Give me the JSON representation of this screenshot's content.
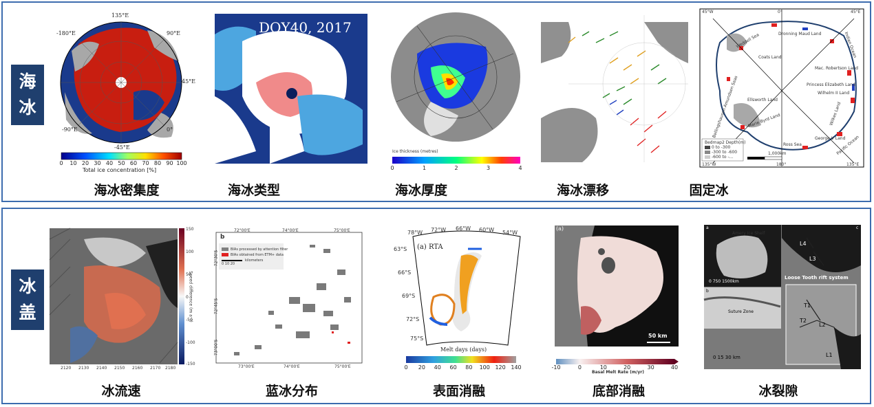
{
  "sea_ice": {
    "tag": "海冰",
    "items": [
      {
        "caption": "海冰密集度",
        "labels": {
          "top": "135°E",
          "left": "-180°E",
          "right": "90°E",
          "right2": "45°E",
          "bottom": "-45°E",
          "bl": "-90°E",
          "br": "0°"
        },
        "colorbar_ticks": [
          "0",
          "10",
          "20",
          "30",
          "40",
          "50",
          "60",
          "70",
          "80",
          "90",
          "100"
        ],
        "colorbar_label": "Total ice concentration [%]"
      },
      {
        "caption": "海冰类型",
        "overlay": "DOY40, 2017"
      },
      {
        "caption": "海冰厚度",
        "colorbar_label": "Ice thickness (metres)",
        "colorbar_ticks": [
          "0",
          "1",
          "2",
          "3",
          "4"
        ]
      },
      {
        "caption": "海冰漂移"
      },
      {
        "caption": "固定冰",
        "labels": {
          "tl": "45°W",
          "tc": "0°",
          "tr": "45°E",
          "bl": "135°W",
          "bc": "180°",
          "br": "135°E",
          "weddell": "Weddell Sea",
          "dronning": "Dronning Maud Land",
          "indian": "Indian Ocean",
          "coats": "Coats Land",
          "mac": "Mac. Robertson Land",
          "princess": "Princess Elizabeth Land",
          "wilhelm": "Wilhelm II Land",
          "amundsen": "Bellingshausen Amundsen Seas",
          "ellsworth": "Ellsworth Land",
          "marie": "Marie Byrd Land",
          "wilkes": "Wilkes Land",
          "ross": "Ross Sea",
          "george": "George V Land",
          "pacific": "Pacific Ocean",
          "legend_title": "Bedmap2 Depth(m)",
          "legend_1": "0 to -300",
          "legend_2": "-300 to -600",
          "legend_3": "-600 to -...",
          "scale": "1,000km"
        }
      }
    ]
  },
  "ice_shelf": {
    "tag": "冰盖",
    "items": [
      {
        "caption": "冰流速",
        "y_ticks": [
          "150",
          "100",
          "50",
          "0",
          "-50",
          "-100",
          "-150"
        ],
        "x_ticks": [
          "2120",
          "2130",
          "2140",
          "2150",
          "2160",
          "2170",
          "2180"
        ],
        "cbar_label": "Speed difference (m a⁻¹)"
      },
      {
        "caption": "蓝冰分布",
        "panel_label": "b",
        "top_ticks": [
          "72°00'E",
          "74°00'E",
          "75°00'E"
        ],
        "bottom_ticks": [
          "73°00'E",
          "74°00'E",
          "75°00'E"
        ],
        "left_ticks": [
          "72°30'S",
          "72°45'S",
          "73°00'S"
        ],
        "legend_1": "BIAs processed by attention filter",
        "legend_2": "BIAs obtained from ETM+ data",
        "legend_scale": "0    10    20",
        "legend_unit": "kilometers"
      },
      {
        "caption": "表面消融",
        "top_ticks": [
          "78°W",
          "72°W",
          "66°W",
          "60°W",
          "54°W"
        ],
        "left_ticks": [
          "63°S",
          "66°S",
          "69°S",
          "72°S",
          "75°S"
        ],
        "panel_label": "(a) RTA",
        "cbar_label": "Melt days (days)",
        "cbar_ticks": [
          "0",
          "20",
          "40",
          "60",
          "80",
          "100",
          "120",
          "140"
        ]
      },
      {
        "caption": "底部消融",
        "panel_label": "(a)",
        "scale": "50 km",
        "cbar_ticks": [
          "-10",
          "0",
          "10",
          "20",
          "30",
          "40"
        ],
        "cbar_label": "Basal Melt Rate (m/yr)"
      },
      {
        "caption": "冰裂隙",
        "label_a": "a",
        "label_b": "b",
        "label_c": "c",
        "amery": "Amery Ice Shelf",
        "scale_a": "0  750  1500km",
        "loose_tooth": "Loose Tooth rift system",
        "t1": "T1",
        "t2": "T2",
        "l1": "L1",
        "l2": "L2",
        "l3": "L3",
        "l4": "L4",
        "suture": "Suture Zone",
        "scale_c": "0     15     30  km"
      }
    ]
  },
  "colors": {
    "border": "#3c6cae",
    "tag_bg": "#1f3f6e",
    "land": "#9a9a9a",
    "ocean_dark": "#1a3a8c"
  }
}
